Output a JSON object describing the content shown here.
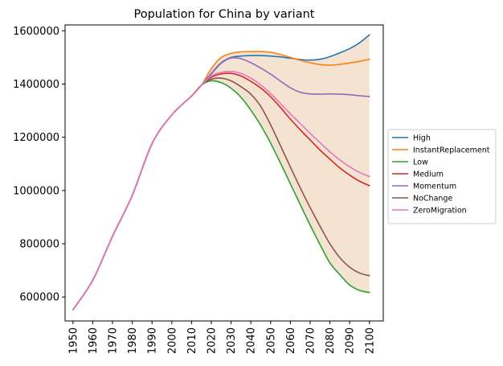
{
  "chart_data": {
    "type": "line",
    "title": "Population for China by variant",
    "xlabel": "",
    "ylabel": "",
    "x": [
      1950,
      1960,
      1970,
      1980,
      1990,
      2000,
      2010,
      2015,
      2020,
      2025,
      2030,
      2035,
      2040,
      2045,
      2050,
      2055,
      2060,
      2065,
      2070,
      2075,
      2080,
      2085,
      2090,
      2095,
      2100
    ],
    "x_ticks": [
      "1950",
      "1960",
      "1970",
      "1980",
      "1990",
      "2000",
      "2010",
      "2020",
      "2030",
      "2040",
      "2050",
      "2060",
      "2070",
      "2080",
      "2090",
      "2100"
    ],
    "y_ticks": [
      "600000",
      "800000",
      "1000000",
      "1200000",
      "1400000",
      "1600000"
    ],
    "xlim": [
      1946,
      2107
    ],
    "ylim": [
      510000,
      1622000
    ],
    "grid": false,
    "legend_position": "right",
    "band": {
      "fill_color": "#f5e3d2",
      "from_year": 2015,
      "note": "shaded range between highest and lowest variant"
    },
    "series": [
      {
        "name": "High",
        "color": "#1f77b4",
        "values": [
          552000,
          663000,
          828000,
          982000,
          1176000,
          1284000,
          1355000,
          1396000,
          1440000,
          1480000,
          1500000,
          1505000,
          1507000,
          1507000,
          1505000,
          1502000,
          1497000,
          1492000,
          1490000,
          1493000,
          1503000,
          1517000,
          1533000,
          1555000,
          1585000
        ]
      },
      {
        "name": "InstantReplacement",
        "color": "#ff7f0e",
        "values": [
          552000,
          663000,
          828000,
          982000,
          1176000,
          1284000,
          1355000,
          1396000,
          1458000,
          1500000,
          1515000,
          1521000,
          1522000,
          1522000,
          1519000,
          1511000,
          1500000,
          1489000,
          1480000,
          1473000,
          1471000,
          1474000,
          1479000,
          1485000,
          1493000
        ]
      },
      {
        "name": "Low",
        "color": "#2ca02c",
        "values": [
          552000,
          663000,
          828000,
          982000,
          1176000,
          1284000,
          1355000,
          1396000,
          1412000,
          1405000,
          1384000,
          1350000,
          1302000,
          1245000,
          1178000,
          1103000,
          1025000,
          947000,
          870000,
          797000,
          728000,
          684000,
          645000,
          625000,
          617000
        ]
      },
      {
        "name": "Medium",
        "color": "#d62728",
        "values": [
          552000,
          663000,
          828000,
          982000,
          1176000,
          1284000,
          1355000,
          1396000,
          1425000,
          1438000,
          1440000,
          1430000,
          1410000,
          1385000,
          1352000,
          1312000,
          1268000,
          1228000,
          1190000,
          1152000,
          1118000,
          1085000,
          1058000,
          1035000,
          1018000
        ]
      },
      {
        "name": "Momentum",
        "color": "#9467bd",
        "values": [
          552000,
          663000,
          828000,
          982000,
          1176000,
          1284000,
          1355000,
          1396000,
          1438000,
          1478000,
          1498000,
          1495000,
          1480000,
          1460000,
          1437000,
          1411000,
          1386000,
          1369000,
          1363000,
          1362000,
          1363000,
          1362000,
          1360000,
          1356000,
          1353000
        ]
      },
      {
        "name": "NoChange",
        "color": "#8c564b",
        "values": [
          552000,
          663000,
          828000,
          982000,
          1176000,
          1284000,
          1355000,
          1396000,
          1418000,
          1422000,
          1412000,
          1390000,
          1362000,
          1316000,
          1247000,
          1168000,
          1088000,
          1010000,
          936000,
          866000,
          800000,
          748000,
          712000,
          690000,
          680000
        ]
      },
      {
        "name": "ZeroMigration",
        "color": "#e377c2",
        "values": [
          552000,
          663000,
          828000,
          982000,
          1176000,
          1284000,
          1355000,
          1396000,
          1430000,
          1444000,
          1447000,
          1440000,
          1422000,
          1397000,
          1364000,
          1327000,
          1288000,
          1252000,
          1215000,
          1180000,
          1145000,
          1115000,
          1089000,
          1068000,
          1052000
        ]
      }
    ]
  }
}
